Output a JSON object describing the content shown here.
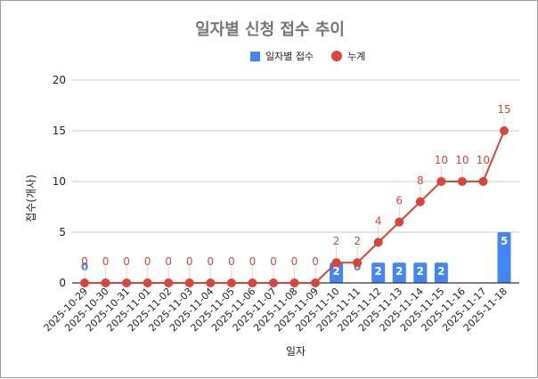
{
  "chart_data": {
    "type": "bar+line",
    "title": "일자별 신청 접수 추이",
    "xlabel": "일자",
    "ylabel": "접수(개사)",
    "ylim": [
      0,
      20
    ],
    "yticks": [
      0,
      5,
      10,
      15,
      20
    ],
    "grid": true,
    "legend_position": "top",
    "categories": [
      "2025-10-29",
      "2025-10-30",
      "2025-10-31",
      "2025-11-01",
      "2025-11-02",
      "2025-11-03",
      "2025-11-04",
      "2025-11-05",
      "2025-11-06",
      "2025-11-07",
      "2025-11-08",
      "2025-11-09",
      "2025-11-10",
      "2025-11-11",
      "2025-11-12",
      "2025-11-13",
      "2025-11-14",
      "2025-11-15",
      "2025-11-16",
      "2025-11-17",
      "2025-11-18"
    ],
    "series": [
      {
        "name": "일자별 접수",
        "type": "bar",
        "color": "#4285f4",
        "values": [
          0,
          0,
          0,
          0,
          0,
          0,
          0,
          0,
          0,
          0,
          0,
          0,
          2,
          0,
          2,
          2,
          2,
          2,
          0,
          0,
          5
        ],
        "labels_shown": [
          true,
          false,
          false,
          false,
          false,
          false,
          false,
          false,
          false,
          false,
          false,
          false,
          true,
          true,
          true,
          true,
          true,
          true,
          false,
          false,
          true
        ]
      },
      {
        "name": "누계",
        "type": "line",
        "color": "#db4437",
        "values": [
          0,
          0,
          0,
          0,
          0,
          0,
          0,
          0,
          0,
          0,
          0,
          0,
          2,
          2,
          4,
          6,
          8,
          10,
          10,
          10,
          15
        ]
      }
    ]
  },
  "legend": {
    "bar_label": "일자별 접수",
    "line_label": "누계"
  }
}
